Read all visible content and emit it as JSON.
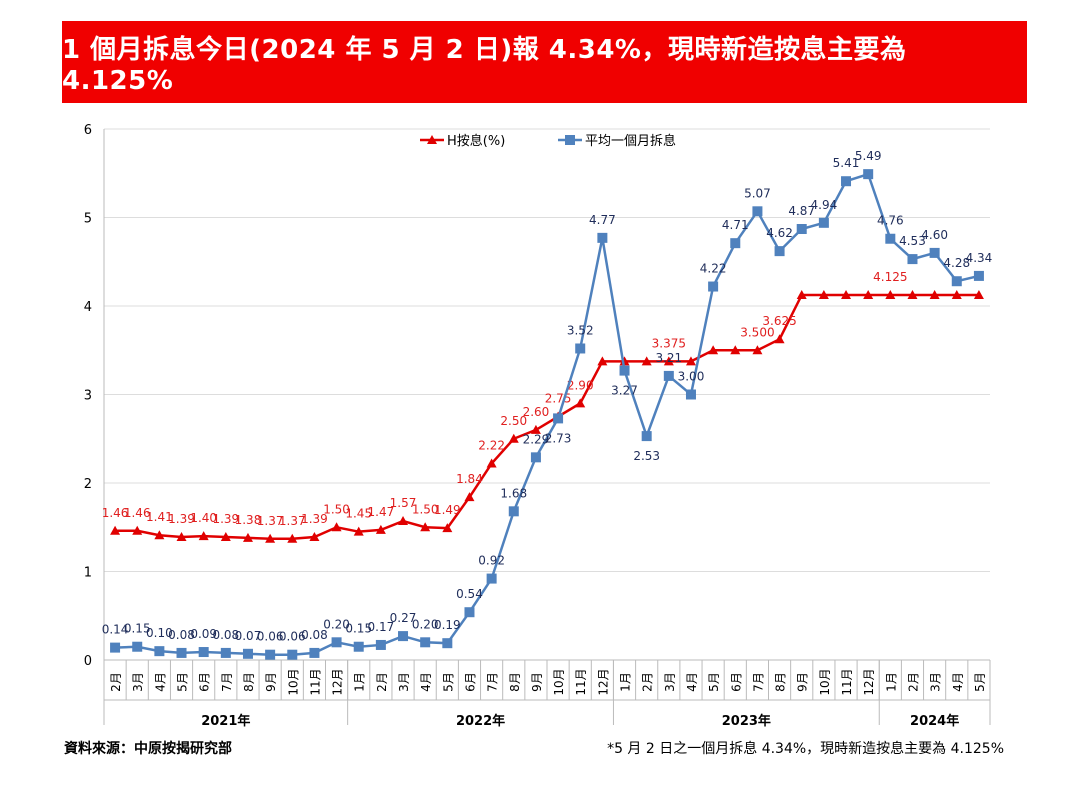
{
  "banner": {
    "title": "1 個月拆息今日(2024 年 5 月 2 日)報 4.34%，現時新造按息主要為 4.125%"
  },
  "footer": {
    "source": "資料來源：中原按揭研究部",
    "note": "*5 月 2 日之一個月拆息 4.34%，現時新造按息主要為 4.125%"
  },
  "chart_data": {
    "type": "line",
    "ylim": [
      0,
      6
    ],
    "yticks": [
      "0",
      "1",
      "2",
      "3",
      "4",
      "5",
      "6"
    ],
    "grid": true,
    "legend_position": "top",
    "categories": [
      "2月",
      "3月",
      "4月",
      "5月",
      "6月",
      "7月",
      "8月",
      "9月",
      "10月",
      "11月",
      "12月",
      "1月",
      "2月",
      "3月",
      "4月",
      "5月",
      "6月",
      "7月",
      "8月",
      "9月",
      "10月",
      "11月",
      "12月",
      "1月",
      "2月",
      "3月",
      "4月",
      "5月",
      "6月",
      "7月",
      "8月",
      "9月",
      "10月",
      "11月",
      "12月",
      "1月",
      "2月",
      "3月",
      "4月",
      "5月"
    ],
    "years": [
      {
        "label": "2021年",
        "count": 11
      },
      {
        "label": "2022年",
        "count": 12
      },
      {
        "label": "2023年",
        "count": 12
      },
      {
        "label": "2024年",
        "count": 5
      }
    ],
    "series": [
      {
        "name": "H按息(%)",
        "color": "#e00000",
        "marker": "triangle",
        "label_color": "#e02020",
        "values": [
          1.46,
          1.46,
          1.41,
          1.39,
          1.4,
          1.39,
          1.38,
          1.37,
          1.37,
          1.39,
          1.5,
          1.45,
          1.47,
          1.57,
          1.5,
          1.49,
          1.84,
          2.22,
          2.5,
          2.6,
          2.75,
          2.9,
          3.375,
          3.375,
          3.375,
          3.375,
          3.375,
          3.5,
          3.5,
          3.5,
          3.625,
          4.125,
          4.125,
          4.125,
          4.125,
          4.125,
          4.125,
          4.125,
          4.125,
          4.125
        ],
        "labels": [
          "1.46",
          "1.46",
          "1.41",
          "1.39",
          "1.40",
          "1.39",
          "1.38",
          "1.37",
          "1.37",
          "1.39",
          "1.50",
          "1.45",
          "1.47",
          "1.57",
          "1.50",
          "1.49",
          "1.84",
          "2.22",
          "2.50",
          "2.60",
          "2.75",
          "2.90",
          "",
          "",
          "",
          "3.375",
          "",
          "",
          "",
          "3.500",
          "3.625",
          "",
          "",
          "",
          "",
          "4.125",
          "",
          "",
          "",
          ""
        ]
      },
      {
        "name": "平均一個月拆息",
        "color": "#4f81bd",
        "marker": "square",
        "label_color": "#1f2d5a",
        "values": [
          0.14,
          0.15,
          0.1,
          0.08,
          0.09,
          0.08,
          0.07,
          0.06,
          0.06,
          0.08,
          0.2,
          0.15,
          0.17,
          0.27,
          0.2,
          0.19,
          0.54,
          0.92,
          1.68,
          2.29,
          2.73,
          3.52,
          4.77,
          3.27,
          2.53,
          3.21,
          3.0,
          4.22,
          4.71,
          5.07,
          4.62,
          4.87,
          4.94,
          5.41,
          5.49,
          4.76,
          4.53,
          4.6,
          4.28,
          4.34
        ],
        "labels": [
          "0.14",
          "0.15",
          "0.10",
          "0.08",
          "0.09",
          "0.08",
          "0.07",
          "0.06",
          "0.06",
          "0.08",
          "0.20",
          "0.15",
          "0.17",
          "0.27",
          "0.20",
          "0.19",
          "0.54",
          "0.92",
          "1.68",
          "2.29",
          "2.73",
          "3.52",
          "4.77",
          "3.27",
          "2.53",
          "3.21",
          "3.00",
          "4.22",
          "4.71",
          "5.07",
          "4.62",
          "4.87",
          "4.94",
          "5.41",
          "5.49",
          "4.76",
          "4.53",
          "4.60",
          "4.28",
          "4.34"
        ]
      }
    ]
  }
}
